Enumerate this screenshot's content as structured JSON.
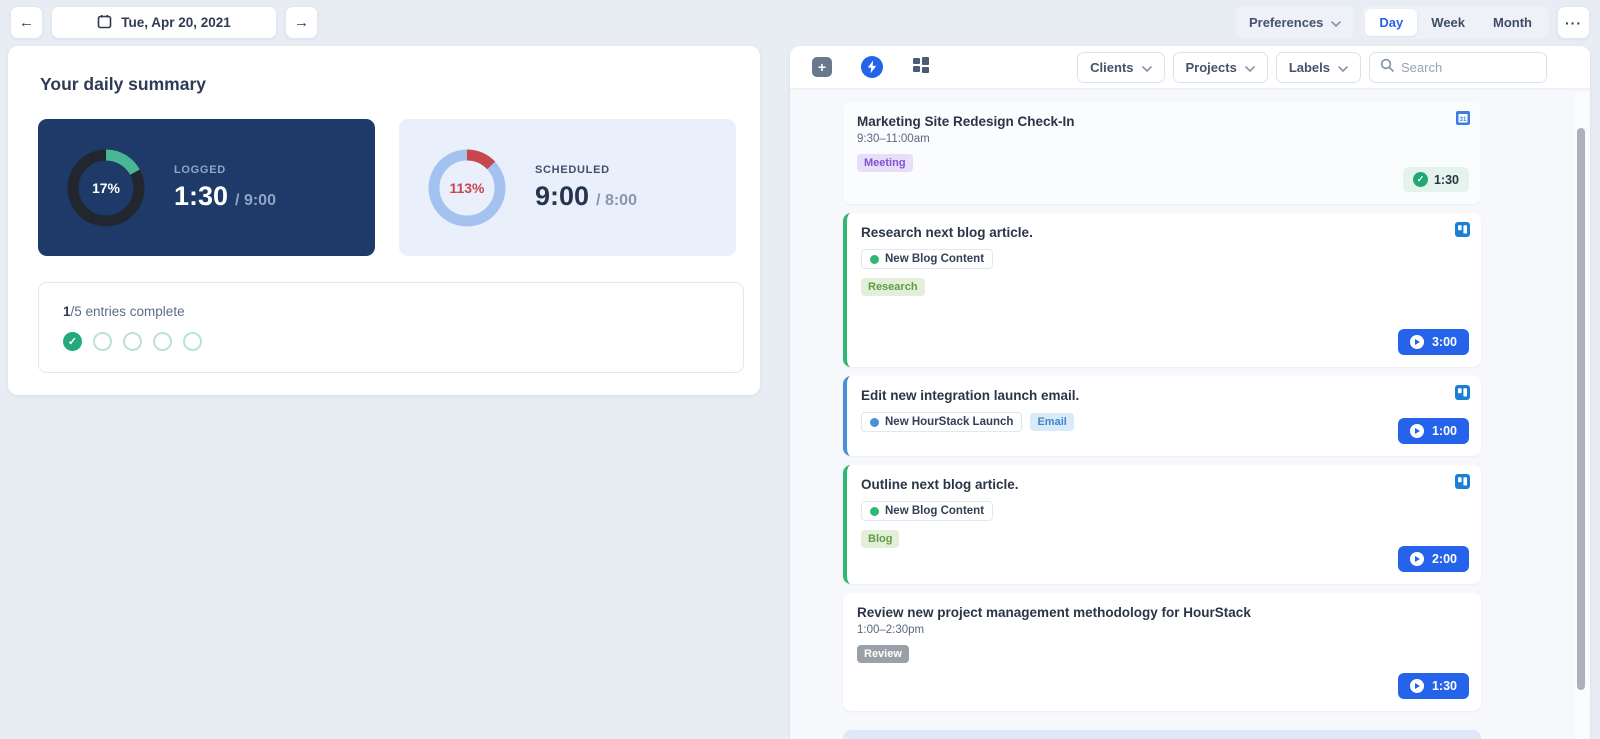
{
  "topbar": {
    "date": "Tue, Apr 20, 2021",
    "preferences": "Preferences",
    "views": {
      "day": "Day",
      "week": "Week",
      "month": "Month"
    },
    "active_view": "Day",
    "more": "···"
  },
  "summary": {
    "title": "Your daily summary",
    "logged": {
      "label": "LOGGED",
      "percent": 17,
      "percent_text": "17%",
      "value": "1:30",
      "total": "/ 9:00"
    },
    "scheduled": {
      "label": "SCHEDULED",
      "percent": 113,
      "percent_text": "113%",
      "value": "9:00",
      "total": "/ 8:00"
    },
    "entries": {
      "count": "1",
      "suffix": "/5 entries complete",
      "total": 5,
      "complete": 1
    }
  },
  "panel": {
    "filters": {
      "clients": "Clients",
      "projects": "Projects",
      "labels": "Labels"
    },
    "search_placeholder": "Search",
    "gcal_icon_text": "31",
    "tasks": [
      {
        "title": "Marketing Site Redesign Check-In",
        "time": "9:30–11:00am",
        "label": "Meeting",
        "label_bg": "#e9def9",
        "label_color": "#8052d6",
        "source": "google-calendar",
        "badge": "1:30",
        "badge_type": "complete",
        "accent": ""
      },
      {
        "title": "Research next blog article.",
        "project": "New Blog Content",
        "label": "Research",
        "label_bg": "#e3efd9",
        "label_color": "#5f9c46",
        "source": "trello",
        "badge": "3:00",
        "badge_type": "timer",
        "accent": "#2eb873"
      },
      {
        "title": "Edit new integration launch email.",
        "project": "New HourStack Launch",
        "label": "Email",
        "label_bg": "#d9eaf9",
        "label_color": "#3d87c9",
        "source": "trello",
        "badge": "1:00",
        "badge_type": "timer",
        "accent": "#4a90d9"
      },
      {
        "title": "Outline next blog article.",
        "project": "New Blog Content",
        "label": "Blog",
        "label_bg": "#e3efd9",
        "label_color": "#5f9c46",
        "source": "trello",
        "badge": "2:00",
        "badge_type": "timer",
        "accent": "#2eb873"
      },
      {
        "title": "Review new project management methodology for HourStack",
        "time": "1:00–2:30pm",
        "label": "Review",
        "label_bg": "#9aa0a8",
        "label_color": "#ffffff",
        "source": "",
        "badge": "1:30",
        "badge_type": "timer",
        "accent": ""
      }
    ]
  },
  "colors": {
    "accent_blue": "#2563eb",
    "navy_card": "#1d3a69",
    "teal": "#49b794",
    "red": "#c8474e",
    "light_blue_ring": "#a3c2ef",
    "page_bg": "#e8ecf3"
  }
}
